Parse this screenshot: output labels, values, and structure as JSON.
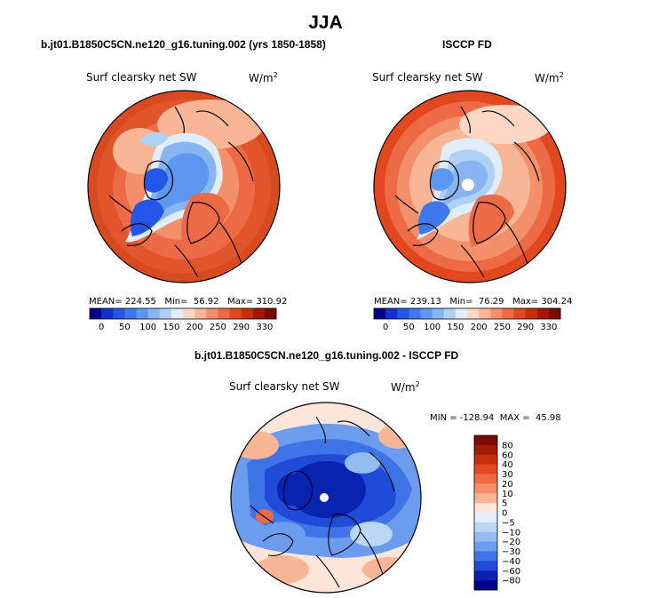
{
  "figure": {
    "title": "JJA",
    "panels": [
      {
        "subtitle": "b.jt01.B1850C5CN.ne120_g16.tuning.002 (yrs 1850-1858)",
        "variable": "Surf clearsky net SW",
        "units_base": "W/m",
        "units_exp": "2",
        "stats": {
          "mean_label": "MEAN=",
          "mean_value": "224.55",
          "min_label": "Min=",
          "min_value": "56.92",
          "max_label": "Max=",
          "max_value": "310.92"
        }
      },
      {
        "subtitle": "ISCCP FD",
        "variable": "Surf clearsky net SW",
        "units_base": "W/m",
        "units_exp": "2",
        "stats": {
          "mean_label": "MEAN=",
          "mean_value": "239.13",
          "min_label": "Min=",
          "min_value": "76.29",
          "max_label": "Max=",
          "max_value": "304.24"
        }
      },
      {
        "subtitle": "b.jt01.B1850C5CN.ne120_g16.tuning.002 - ISCCP FD",
        "variable": "Surf clearsky net SW",
        "units_base": "W/m",
        "units_exp": "2",
        "stats": {
          "min_label": "MIN =",
          "min_value": "-128.94",
          "max_label": "MAX =",
          "max_value": "45.98"
        }
      }
    ]
  },
  "chart_data": [
    {
      "type": "heatmap",
      "projection": "north polar stereographic",
      "title": "Surf clearsky net SW",
      "units": "W/m2",
      "mean": 224.55,
      "min": 56.92,
      "max": 310.92,
      "colorbar": {
        "orientation": "horizontal",
        "levels": [
          0,
          25,
          50,
          75,
          100,
          125,
          150,
          175,
          200,
          225,
          250,
          270,
          290,
          310,
          330
        ],
        "tick_labels": [
          "0",
          "50",
          "100",
          "150",
          "200",
          "250",
          "290",
          "330"
        ],
        "colors": [
          "#00008b",
          "#1530c8",
          "#2355e6",
          "#3d78ec",
          "#5e97ef",
          "#86b5f2",
          "#b0d1f6",
          "#e0eefc",
          "#fcd8c4",
          "#f8b696",
          "#f3906a",
          "#ec6a45",
          "#e2481f",
          "#c92e0c",
          "#a01a04",
          "#7a0a02"
        ]
      }
    },
    {
      "type": "heatmap",
      "projection": "north polar stereographic",
      "title": "Surf clearsky net SW",
      "units": "W/m2",
      "mean": 239.13,
      "min": 76.29,
      "max": 304.24,
      "colorbar": {
        "orientation": "horizontal",
        "levels": [
          0,
          25,
          50,
          75,
          100,
          125,
          150,
          175,
          200,
          225,
          250,
          270,
          290,
          310,
          330
        ],
        "tick_labels": [
          "0",
          "50",
          "100",
          "150",
          "200",
          "250",
          "290",
          "330"
        ],
        "colors": [
          "#00008b",
          "#1530c8",
          "#2355e6",
          "#3d78ec",
          "#5e97ef",
          "#86b5f2",
          "#b0d1f6",
          "#e0eefc",
          "#fcd8c4",
          "#f8b696",
          "#f3906a",
          "#ec6a45",
          "#e2481f",
          "#c92e0c",
          "#a01a04",
          "#7a0a02"
        ]
      }
    },
    {
      "type": "heatmap",
      "projection": "north polar stereographic",
      "title": "Surf clearsky net SW (difference)",
      "units": "W/m2",
      "min": -128.94,
      "max": 45.98,
      "colorbar": {
        "orientation": "vertical",
        "levels": [
          80,
          60,
          40,
          30,
          20,
          10,
          5,
          0,
          -5,
          -10,
          -20,
          -30,
          -40,
          -60,
          -80
        ],
        "tick_labels": [
          "80",
          "60",
          "40",
          "30",
          "20",
          "10",
          "5",
          "0",
          "−5",
          "−10",
          "−20",
          "−30",
          "−40",
          "−60",
          "−80"
        ],
        "colors": [
          "#7a0a02",
          "#a01a04",
          "#c92e0c",
          "#e2481f",
          "#ec6a45",
          "#f3906a",
          "#f8b696",
          "#fce6da",
          "#e3effc",
          "#bcd6f6",
          "#94bbf2",
          "#6b9cee",
          "#3e74e8",
          "#1f4bd8",
          "#0a22b0",
          "#00008b"
        ]
      }
    }
  ]
}
